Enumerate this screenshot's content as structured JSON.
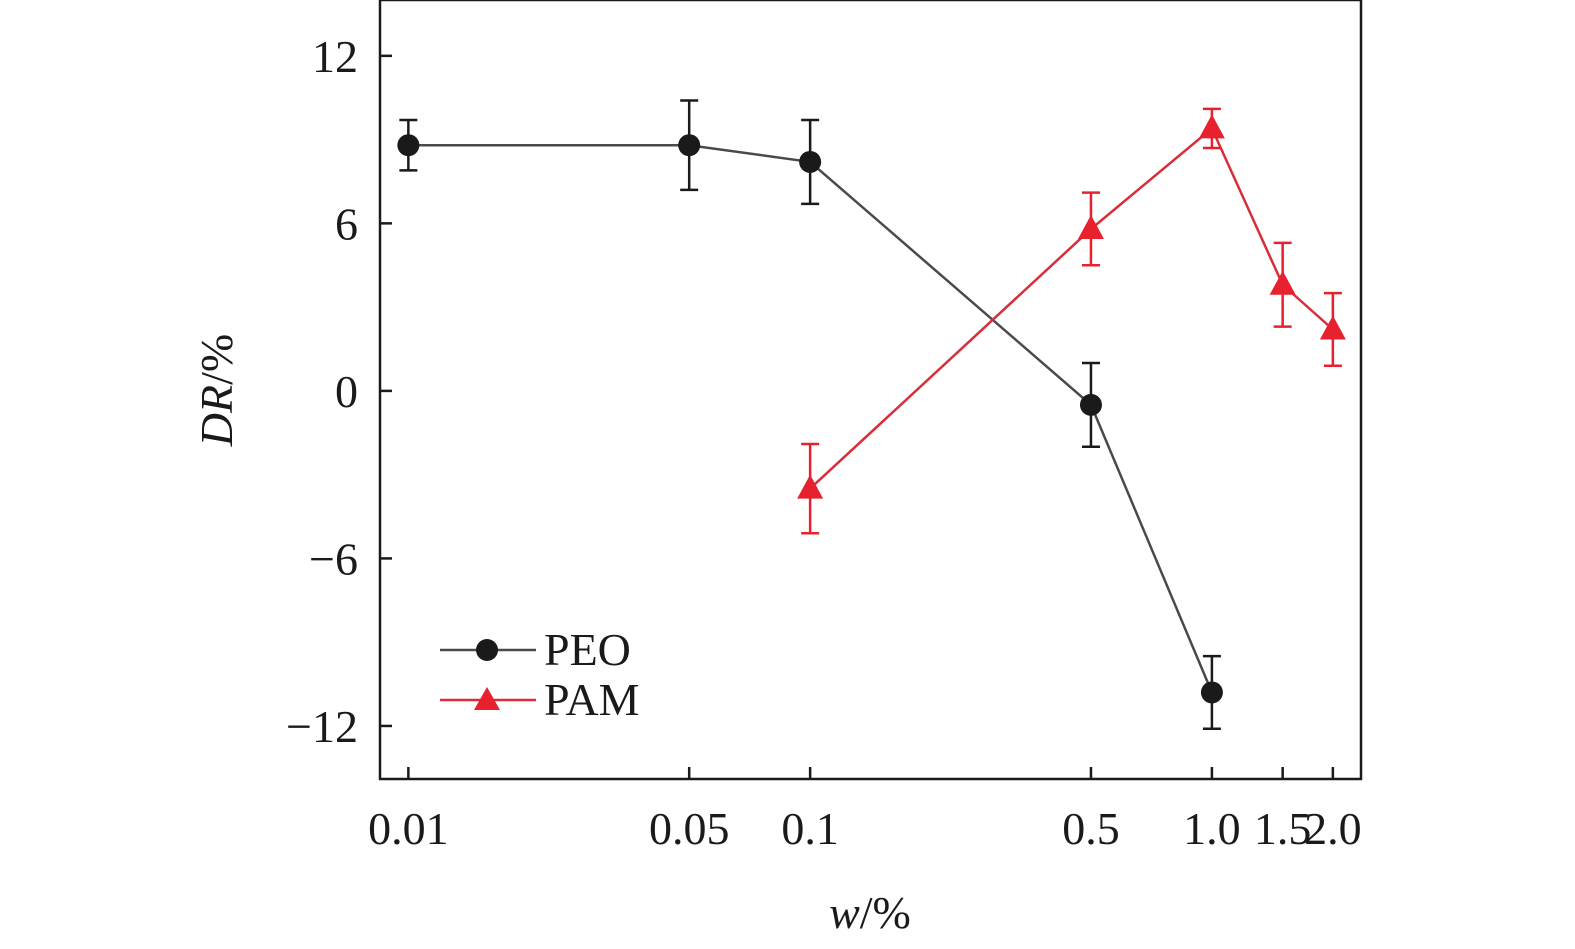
{
  "chart_data": {
    "type": "line",
    "xlabel": {
      "italic": "w",
      "rest": "/%"
    },
    "ylabel": {
      "italic": "DR",
      "rest": "/%"
    },
    "xscale": "log",
    "xlim": [
      0.0085,
      2.35
    ],
    "ylim": [
      -13.9,
      14
    ],
    "x_ticks": [
      0.01,
      0.05,
      0.1,
      0.5,
      1.0,
      1.5,
      2.0
    ],
    "x_tick_labels": [
      "0.01",
      "0.05",
      "0.1",
      "0.5",
      "1.0",
      "1.5",
      "2.0"
    ],
    "y_ticks": [
      12,
      6,
      0,
      -6,
      -12
    ],
    "y_tick_labels": [
      "12",
      "6",
      "0",
      "−6",
      "−12"
    ],
    "grid": false,
    "legend_position": "bottom-left",
    "series": [
      {
        "name": "PEO",
        "color": "#4a4a4a",
        "marker": "circle",
        "marker_color": "#1a1a1a",
        "points": [
          {
            "x": 0.01,
            "y": 8.8,
            "err": 0.9
          },
          {
            "x": 0.05,
            "y": 8.8,
            "err": 1.6
          },
          {
            "x": 0.1,
            "y": 8.2,
            "err": 1.5
          },
          {
            "x": 0.5,
            "y": -0.5,
            "err": 1.5
          },
          {
            "x": 1.0,
            "y": -10.8,
            "err": 1.3
          }
        ]
      },
      {
        "name": "PAM",
        "color": "#d62f3a",
        "marker": "triangle",
        "marker_color": "#e8212e",
        "points": [
          {
            "x": 0.1,
            "y": -3.5,
            "err": 1.6
          },
          {
            "x": 0.5,
            "y": 5.8,
            "err": 1.3
          },
          {
            "x": 1.0,
            "y": 9.4,
            "err": 0.7
          },
          {
            "x": 1.5,
            "y": 3.8,
            "err": 1.5
          },
          {
            "x": 2.0,
            "y": 2.2,
            "err": 1.3
          }
        ]
      }
    ]
  }
}
